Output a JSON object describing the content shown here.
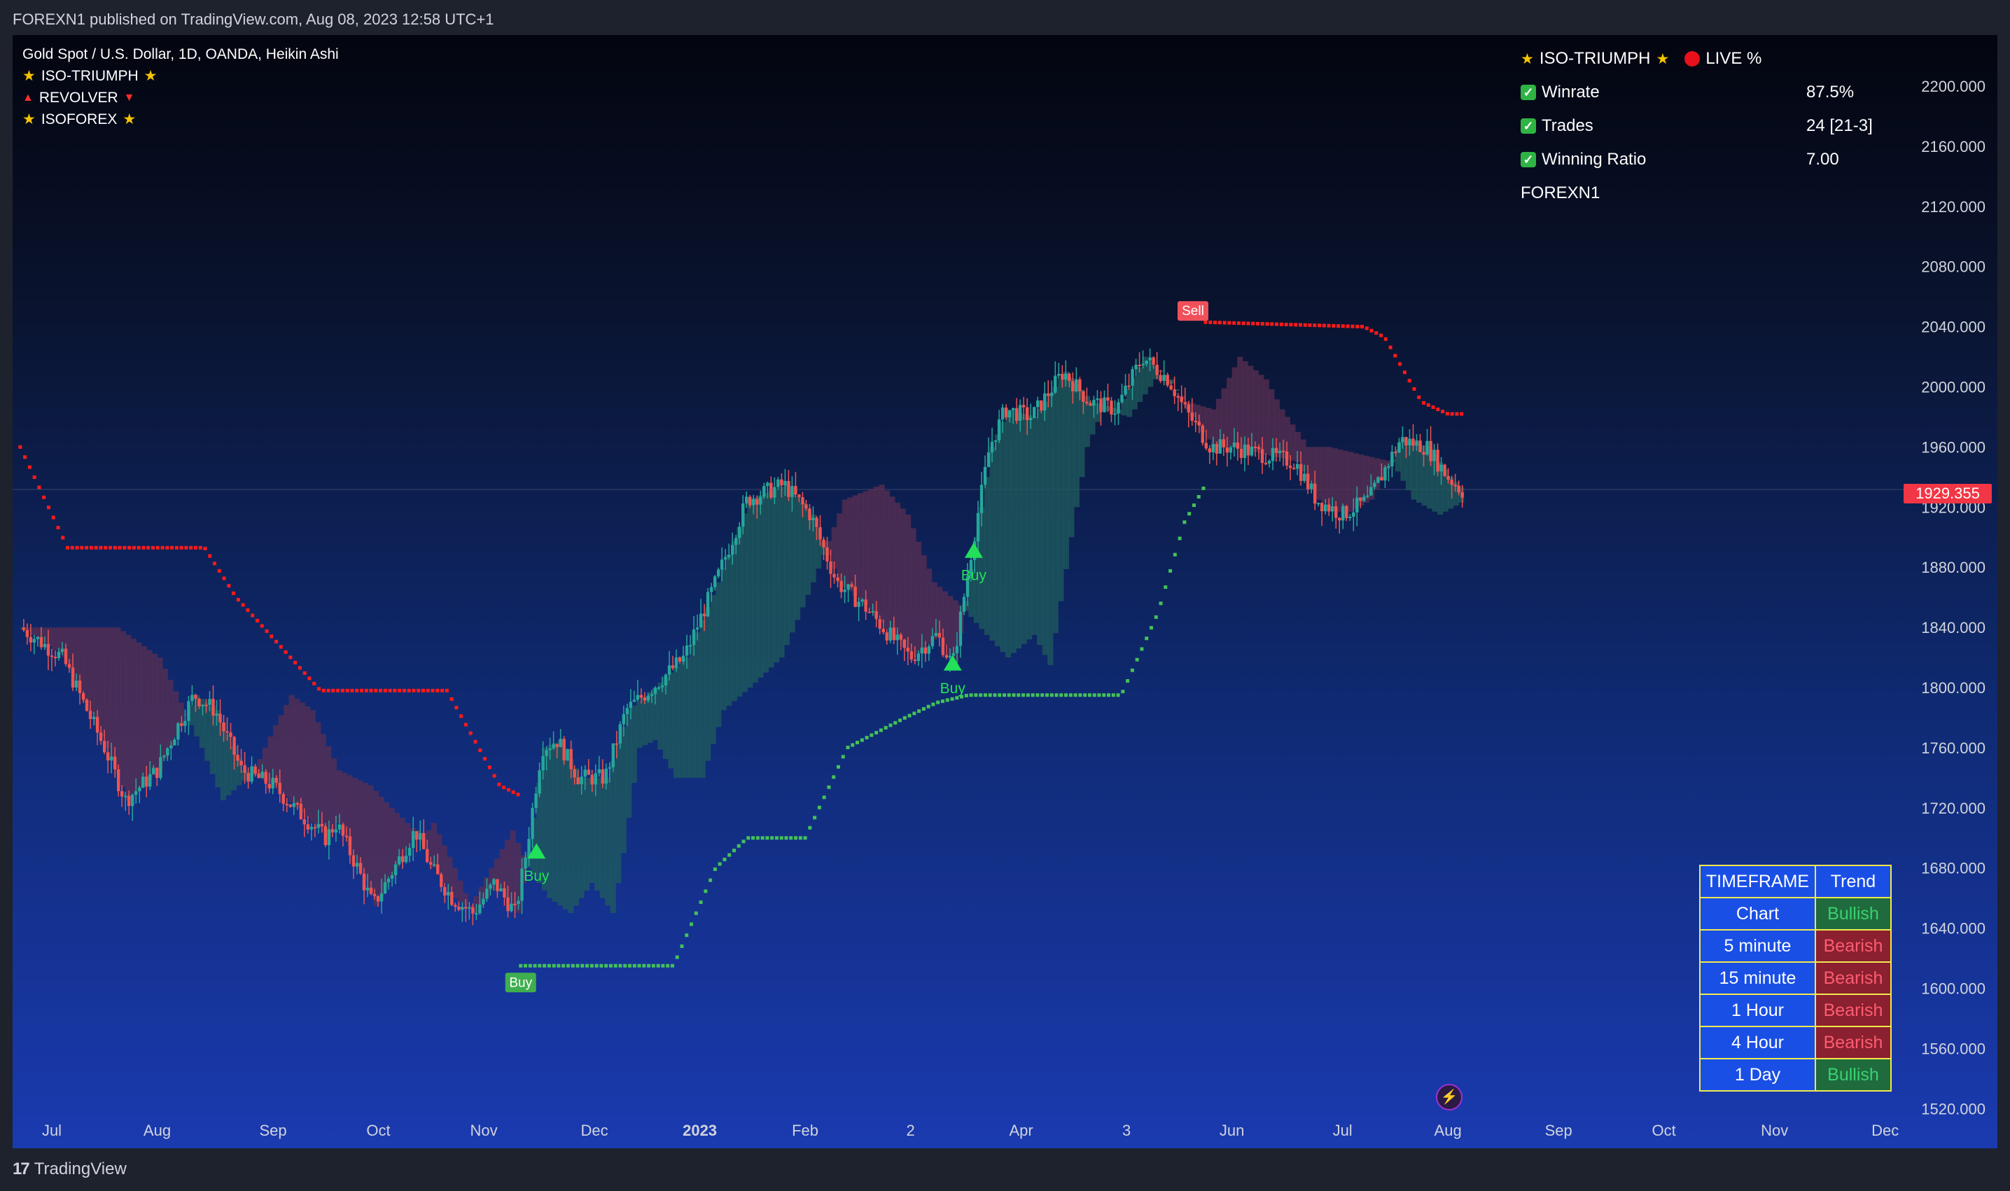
{
  "header": {
    "published": "FOREXN1 published on TradingView.com, Aug 08, 2023 12:58 UTC+1"
  },
  "legend": {
    "symbol": "Gold Spot / U.S. Dollar, 1D, OANDA, Heikin Ashi",
    "indicator1": "ISO-TRIUMPH",
    "indicator2": "REVOLVER",
    "indicator3": "ISOFOREX"
  },
  "stats_panel": {
    "title": "ISO-TRIUMPH",
    "live": "LIVE %",
    "winrate_label": "Winrate",
    "winrate_value": "87.5%",
    "trades_label": "Trades",
    "trades_value": "24 [21-3]",
    "ratio_label": "Winning Ratio",
    "ratio_value": "7.00",
    "author": "FOREXN1"
  },
  "trend_table": {
    "header_tf": "TIMEFRAME",
    "header_trend": "Trend",
    "rows": [
      {
        "tf": "Chart",
        "trend": "Bullish"
      },
      {
        "tf": "5 minute",
        "trend": "Bearish"
      },
      {
        "tf": "15 minute",
        "trend": "Bearish"
      },
      {
        "tf": "1 Hour",
        "trend": "Bearish"
      },
      {
        "tf": "4 Hour",
        "trend": "Bearish"
      },
      {
        "tf": "1 Day",
        "trend": "Bullish"
      }
    ]
  },
  "footer": {
    "brand": "TradingView"
  },
  "colors": {
    "bull_candle": "#26a69a",
    "bear_candle": "#ef5350",
    "stop_long": "#43c15a",
    "stop_short": "#ff1a1a",
    "cloud_bull": "#1f5c5c",
    "cloud_bear": "#5a2f52",
    "signal": "#22e05a"
  },
  "chart_data": {
    "type": "candlestick",
    "title": "Gold Spot / U.S. Dollar, 1D, OANDA, Heikin Ashi",
    "last_price": "1929.355",
    "y_ticks": [
      "2200.000",
      "2160.000",
      "2120.000",
      "2080.000",
      "2040.000",
      "2000.000",
      "1960.000",
      "1920.000",
      "1880.000",
      "1840.000",
      "1800.000",
      "1760.000",
      "1720.000",
      "1680.000",
      "1640.000",
      "1600.000",
      "1560.000",
      "1520.000"
    ],
    "ylim": [
      1510,
      2215
    ],
    "x_ticks": [
      "Jul",
      "Aug",
      "Sep",
      "Oct",
      "Nov",
      "Dec",
      "2023",
      "Feb",
      "2",
      "Apr",
      "3",
      "Jun",
      "Jul",
      "Aug",
      "Sep",
      "Oct",
      "Nov",
      "Dec"
    ],
    "x_tick_months": [
      0.3,
      1.3,
      2.4,
      3.4,
      4.4,
      5.45,
      6.45,
      7.45,
      8.45,
      9.5,
      10.5,
      11.5,
      12.55,
      13.55,
      14.6,
      15.6,
      16.65,
      17.7
    ],
    "price_path": [
      [
        0.0,
        1840
      ],
      [
        0.4,
        1820
      ],
      [
        0.8,
        1760
      ],
      [
        1.0,
        1725
      ],
      [
        1.3,
        1745
      ],
      [
        1.5,
        1775
      ],
      [
        1.65,
        1795
      ],
      [
        1.85,
        1785
      ],
      [
        2.1,
        1745
      ],
      [
        2.4,
        1735
      ],
      [
        2.6,
        1720
      ],
      [
        2.9,
        1700
      ],
      [
        3.0,
        1710
      ],
      [
        3.2,
        1680
      ],
      [
        3.35,
        1655
      ],
      [
        3.55,
        1680
      ],
      [
        3.75,
        1705
      ],
      [
        3.9,
        1680
      ],
      [
        4.1,
        1660
      ],
      [
        4.3,
        1650
      ],
      [
        4.5,
        1670
      ],
      [
        4.7,
        1650
      ],
      [
        4.8,
        1690
      ],
      [
        4.95,
        1760
      ],
      [
        5.1,
        1765
      ],
      [
        5.3,
        1740
      ],
      [
        5.55,
        1740
      ],
      [
        5.75,
        1785
      ],
      [
        6.0,
        1800
      ],
      [
        6.3,
        1820
      ],
      [
        6.6,
        1870
      ],
      [
        6.9,
        1925
      ],
      [
        7.25,
        1935
      ],
      [
        7.5,
        1915
      ],
      [
        7.75,
        1870
      ],
      [
        8.0,
        1855
      ],
      [
        8.25,
        1835
      ],
      [
        8.45,
        1820
      ],
      [
        8.7,
        1835
      ],
      [
        8.85,
        1815
      ],
      [
        9.05,
        1900
      ],
      [
        9.2,
        1960
      ],
      [
        9.35,
        1985
      ],
      [
        9.6,
        1980
      ],
      [
        9.9,
        2010
      ],
      [
        10.15,
        1990
      ],
      [
        10.4,
        1985
      ],
      [
        10.65,
        2020
      ],
      [
        10.9,
        2005
      ],
      [
        11.05,
        1985
      ],
      [
        11.3,
        1960
      ],
      [
        11.5,
        1960
      ],
      [
        11.8,
        1955
      ],
      [
        12.1,
        1950
      ],
      [
        12.3,
        1925
      ],
      [
        12.55,
        1915
      ],
      [
        12.8,
        1925
      ],
      [
        12.95,
        1945
      ],
      [
        13.1,
        1965
      ],
      [
        13.35,
        1960
      ],
      [
        13.55,
        1940
      ],
      [
        13.7,
        1930
      ]
    ],
    "stop_long": [
      [
        4.75,
        1615
      ],
      [
        6.2,
        1615
      ],
      [
        6.6,
        1680
      ],
      [
        6.9,
        1700
      ],
      [
        7.45,
        1700
      ],
      [
        7.85,
        1760
      ],
      [
        8.4,
        1780
      ],
      [
        8.7,
        1790
      ],
      [
        9.0,
        1795
      ],
      [
        10.45,
        1795
      ],
      [
        10.8,
        1850
      ],
      [
        11.05,
        1910
      ],
      [
        11.25,
        1935
      ]
    ],
    "stop_short": [
      [
        0.0,
        1960
      ],
      [
        0.45,
        1893
      ],
      [
        1.75,
        1893
      ],
      [
        2.05,
        1860
      ],
      [
        2.85,
        1798
      ],
      [
        4.05,
        1798
      ],
      [
        4.55,
        1735
      ],
      [
        4.75,
        1728
      ]
    ],
    "stop_short_2": [
      [
        11.25,
        2043
      ],
      [
        12.75,
        2040
      ],
      [
        12.95,
        2033
      ],
      [
        13.3,
        1990
      ],
      [
        13.55,
        1982
      ],
      [
        13.7,
        1982
      ]
    ],
    "signals": [
      {
        "label": "Buy",
        "style": "box",
        "month": 4.75,
        "price": 1615
      },
      {
        "label": "Buy",
        "style": "arrow",
        "month": 4.9,
        "price": 1690
      },
      {
        "label": "Buy",
        "style": "arrow",
        "month": 8.85,
        "price": 1815
      },
      {
        "label": "Buy",
        "style": "arrow",
        "month": 9.05,
        "price": 1890
      },
      {
        "label": "Sell",
        "style": "box",
        "month": 11.25,
        "price": 2043
      }
    ]
  }
}
